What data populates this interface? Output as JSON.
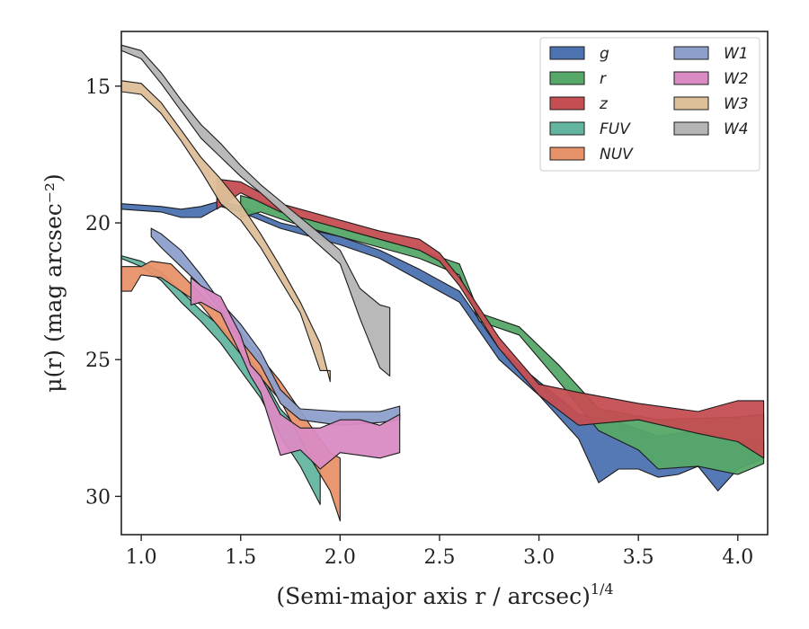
{
  "chart_data": {
    "type": "area",
    "xlabel": "(Semi-major axis r / arcsec)",
    "xlabel_var": "r",
    "xlabel_exp": "1/4",
    "ylabel": "μ(r) (mag arcsec⁻²)",
    "xlim": [
      0.9,
      4.15
    ],
    "ylim": [
      31.4,
      13.0
    ],
    "y_inverted": true,
    "x_ticks": [
      {
        "value": 1.0,
        "label": "1.0"
      },
      {
        "value": 1.5,
        "label": "1.5"
      },
      {
        "value": 2.0,
        "label": "2.0"
      },
      {
        "value": 2.5,
        "label": "2.5"
      },
      {
        "value": 3.0,
        "label": "3.0"
      },
      {
        "value": 3.5,
        "label": "3.5"
      },
      {
        "value": 4.0,
        "label": "4.0"
      }
    ],
    "y_ticks": [
      {
        "value": 15,
        "label": "15"
      },
      {
        "value": 20,
        "label": "20"
      },
      {
        "value": 25,
        "label": "25"
      },
      {
        "value": 30,
        "label": "30"
      }
    ],
    "grid": false,
    "legend_position": "top-right",
    "legend_columns": 2,
    "series": [
      {
        "name": "g",
        "color": "#4c72b0",
        "upper": [
          [
            0.9,
            19.3
          ],
          [
            1.1,
            19.4
          ],
          [
            1.2,
            19.5
          ],
          [
            1.3,
            19.4
          ],
          [
            1.4,
            19.2
          ],
          [
            1.5,
            19.4
          ],
          [
            1.7,
            20.0
          ],
          [
            2.0,
            20.5
          ],
          [
            2.2,
            21.0
          ],
          [
            2.4,
            21.7
          ],
          [
            2.6,
            22.5
          ],
          [
            2.8,
            24.6
          ],
          [
            3.0,
            25.8
          ],
          [
            3.2,
            27.0
          ],
          [
            3.4,
            27.3
          ],
          [
            3.6,
            27.8
          ],
          [
            3.8,
            27.6
          ],
          [
            4.0,
            28.0
          ],
          [
            4.13,
            28.0
          ]
        ],
        "lower": [
          [
            0.9,
            19.5
          ],
          [
            1.1,
            19.6
          ],
          [
            1.2,
            19.8
          ],
          [
            1.3,
            19.8
          ],
          [
            1.4,
            19.4
          ],
          [
            1.5,
            19.6
          ],
          [
            1.7,
            20.2
          ],
          [
            2.0,
            20.8
          ],
          [
            2.2,
            21.3
          ],
          [
            2.4,
            22.1
          ],
          [
            2.6,
            22.9
          ],
          [
            2.8,
            25.0
          ],
          [
            3.0,
            26.3
          ],
          [
            3.2,
            27.9
          ],
          [
            3.3,
            29.5
          ],
          [
            3.4,
            29.0
          ],
          [
            3.5,
            29.0
          ],
          [
            3.6,
            29.3
          ],
          [
            3.7,
            29.2
          ],
          [
            3.8,
            28.9
          ],
          [
            3.9,
            29.8
          ],
          [
            4.0,
            29.0
          ],
          [
            4.13,
            28.6
          ]
        ]
      },
      {
        "name": "r",
        "color": "#55a868",
        "upper": [
          [
            1.5,
            19.0
          ],
          [
            1.6,
            19.2
          ],
          [
            1.8,
            19.8
          ],
          [
            2.0,
            20.2
          ],
          [
            2.2,
            20.6
          ],
          [
            2.4,
            21.0
          ],
          [
            2.6,
            21.5
          ],
          [
            2.7,
            23.3
          ],
          [
            2.9,
            23.8
          ],
          [
            3.1,
            25.2
          ],
          [
            3.3,
            26.8
          ],
          [
            3.6,
            27.2
          ],
          [
            4.0,
            27.1
          ],
          [
            4.13,
            27.0
          ]
        ],
        "lower": [
          [
            1.5,
            19.8
          ],
          [
            1.6,
            19.6
          ],
          [
            1.8,
            20.1
          ],
          [
            2.0,
            20.5
          ],
          [
            2.2,
            20.9
          ],
          [
            2.4,
            21.3
          ],
          [
            2.6,
            21.9
          ],
          [
            2.7,
            23.6
          ],
          [
            2.9,
            24.1
          ],
          [
            3.1,
            25.8
          ],
          [
            3.3,
            27.6
          ],
          [
            3.5,
            28.3
          ],
          [
            3.6,
            29.0
          ],
          [
            3.8,
            28.9
          ],
          [
            4.0,
            29.2
          ],
          [
            4.13,
            28.8
          ]
        ]
      },
      {
        "name": "z",
        "color": "#c44e52",
        "upper": [
          [
            1.38,
            18.4
          ],
          [
            1.5,
            18.5
          ],
          [
            1.7,
            19.3
          ],
          [
            2.0,
            19.9
          ],
          [
            2.2,
            20.3
          ],
          [
            2.4,
            20.6
          ],
          [
            2.5,
            21.1
          ],
          [
            2.6,
            22.0
          ],
          [
            2.8,
            24.2
          ],
          [
            3.0,
            25.9
          ],
          [
            3.2,
            26.2
          ],
          [
            3.5,
            26.6
          ],
          [
            3.8,
            26.9
          ],
          [
            4.0,
            26.5
          ],
          [
            4.13,
            26.5
          ]
        ],
        "lower": [
          [
            1.38,
            19.5
          ],
          [
            1.5,
            18.9
          ],
          [
            1.7,
            19.6
          ],
          [
            2.0,
            20.2
          ],
          [
            2.2,
            20.6
          ],
          [
            2.4,
            21.0
          ],
          [
            2.5,
            21.4
          ],
          [
            2.6,
            22.3
          ],
          [
            2.8,
            24.6
          ],
          [
            3.0,
            26.3
          ],
          [
            3.2,
            27.4
          ],
          [
            3.5,
            27.2
          ],
          [
            3.8,
            27.7
          ],
          [
            4.0,
            28.0
          ],
          [
            4.13,
            28.6
          ]
        ]
      },
      {
        "name": "FUV",
        "color": "#64b5a0",
        "upper": [
          [
            0.9,
            21.2
          ],
          [
            1.0,
            21.4
          ],
          [
            1.1,
            21.8
          ],
          [
            1.2,
            22.5
          ],
          [
            1.3,
            23.2
          ],
          [
            1.4,
            23.8
          ],
          [
            1.5,
            24.5
          ],
          [
            1.6,
            25.5
          ],
          [
            1.7,
            26.8
          ],
          [
            1.8,
            27.6
          ],
          [
            1.9,
            28.0
          ]
        ],
        "lower": [
          [
            0.9,
            21.3
          ],
          [
            1.0,
            21.6
          ],
          [
            1.1,
            22.1
          ],
          [
            1.2,
            22.9
          ],
          [
            1.3,
            23.6
          ],
          [
            1.4,
            24.4
          ],
          [
            1.5,
            25.4
          ],
          [
            1.6,
            26.4
          ],
          [
            1.7,
            27.8
          ],
          [
            1.8,
            28.9
          ],
          [
            1.9,
            30.3
          ]
        ]
      },
      {
        "name": "NUV",
        "color": "#e8926a",
        "upper": [
          [
            0.9,
            21.6
          ],
          [
            1.0,
            21.6
          ],
          [
            1.05,
            21.4
          ],
          [
            1.15,
            21.5
          ],
          [
            1.3,
            22.6
          ],
          [
            1.5,
            24.0
          ],
          [
            1.7,
            25.8
          ],
          [
            1.85,
            27.4
          ],
          [
            1.95,
            28.4
          ],
          [
            2.0,
            28.6
          ]
        ],
        "lower": [
          [
            0.9,
            22.5
          ],
          [
            0.95,
            22.5
          ],
          [
            1.0,
            21.9
          ],
          [
            1.1,
            22.0
          ],
          [
            1.3,
            23.0
          ],
          [
            1.5,
            24.8
          ],
          [
            1.7,
            26.5
          ],
          [
            1.85,
            28.6
          ],
          [
            1.95,
            29.8
          ],
          [
            2.0,
            30.9
          ]
        ]
      },
      {
        "name": "W1",
        "color": "#8da0cb",
        "upper": [
          [
            1.05,
            20.2
          ],
          [
            1.1,
            20.4
          ],
          [
            1.2,
            21.0
          ],
          [
            1.3,
            21.9
          ],
          [
            1.4,
            22.9
          ],
          [
            1.5,
            23.7
          ],
          [
            1.6,
            24.7
          ],
          [
            1.7,
            26.1
          ],
          [
            1.8,
            26.8
          ],
          [
            2.0,
            26.9
          ],
          [
            2.2,
            26.9
          ],
          [
            2.3,
            26.7
          ]
        ],
        "lower": [
          [
            1.05,
            20.5
          ],
          [
            1.1,
            20.9
          ],
          [
            1.2,
            21.6
          ],
          [
            1.3,
            22.3
          ],
          [
            1.4,
            23.2
          ],
          [
            1.5,
            24.3
          ],
          [
            1.6,
            25.2
          ],
          [
            1.7,
            26.6
          ],
          [
            1.8,
            27.2
          ],
          [
            2.0,
            27.4
          ],
          [
            2.2,
            27.3
          ],
          [
            2.3,
            27.2
          ]
        ]
      },
      {
        "name": "W2",
        "color": "#da8bc3",
        "upper": [
          [
            1.25,
            22.0
          ],
          [
            1.3,
            22.3
          ],
          [
            1.4,
            22.7
          ],
          [
            1.5,
            24.1
          ],
          [
            1.55,
            25.2
          ],
          [
            1.6,
            25.6
          ],
          [
            1.7,
            27.0
          ],
          [
            1.8,
            27.5
          ],
          [
            1.9,
            27.5
          ],
          [
            2.0,
            27.2
          ],
          [
            2.1,
            27.2
          ],
          [
            2.2,
            27.4
          ],
          [
            2.3,
            27.0
          ]
        ],
        "lower": [
          [
            1.25,
            23.0
          ],
          [
            1.3,
            22.9
          ],
          [
            1.4,
            23.3
          ],
          [
            1.5,
            24.8
          ],
          [
            1.55,
            25.6
          ],
          [
            1.6,
            26.2
          ],
          [
            1.7,
            28.5
          ],
          [
            1.8,
            28.3
          ],
          [
            1.9,
            29.0
          ],
          [
            2.0,
            28.4
          ],
          [
            2.1,
            28.5
          ],
          [
            2.2,
            28.6
          ],
          [
            2.3,
            28.4
          ]
        ]
      },
      {
        "name": "W3",
        "color": "#ddbf98",
        "upper": [
          [
            0.9,
            14.8
          ],
          [
            1.0,
            14.9
          ],
          [
            1.1,
            15.6
          ],
          [
            1.2,
            16.6
          ],
          [
            1.3,
            17.6
          ],
          [
            1.4,
            18.4
          ],
          [
            1.5,
            19.3
          ],
          [
            1.6,
            20.4
          ],
          [
            1.7,
            21.6
          ],
          [
            1.8,
            22.9
          ],
          [
            1.9,
            24.4
          ],
          [
            1.95,
            25.8
          ]
        ],
        "lower": [
          [
            0.9,
            15.2
          ],
          [
            1.0,
            15.3
          ],
          [
            1.1,
            16.0
          ],
          [
            1.2,
            17.0
          ],
          [
            1.3,
            18.1
          ],
          [
            1.4,
            19.3
          ],
          [
            1.5,
            19.9
          ],
          [
            1.6,
            20.9
          ],
          [
            1.7,
            22.1
          ],
          [
            1.8,
            23.3
          ],
          [
            1.9,
            25.4
          ],
          [
            1.95,
            25.4
          ]
        ]
      },
      {
        "name": "W4",
        "color": "#b5b5b5",
        "upper": [
          [
            0.9,
            13.5
          ],
          [
            1.0,
            13.7
          ],
          [
            1.1,
            14.5
          ],
          [
            1.2,
            15.5
          ],
          [
            1.3,
            16.4
          ],
          [
            1.4,
            17.1
          ],
          [
            1.5,
            17.9
          ],
          [
            1.6,
            18.6
          ],
          [
            1.8,
            19.8
          ],
          [
            2.0,
            21.0
          ],
          [
            2.1,
            22.4
          ],
          [
            2.2,
            23.0
          ],
          [
            2.25,
            23.1
          ]
        ],
        "lower": [
          [
            0.9,
            13.7
          ],
          [
            1.0,
            14.0
          ],
          [
            1.1,
            14.9
          ],
          [
            1.2,
            15.9
          ],
          [
            1.3,
            16.9
          ],
          [
            1.4,
            17.6
          ],
          [
            1.5,
            18.3
          ],
          [
            1.6,
            18.9
          ],
          [
            1.8,
            20.2
          ],
          [
            2.0,
            21.5
          ],
          [
            2.1,
            23.5
          ],
          [
            2.2,
            25.3
          ],
          [
            2.25,
            25.6
          ]
        ]
      }
    ]
  }
}
